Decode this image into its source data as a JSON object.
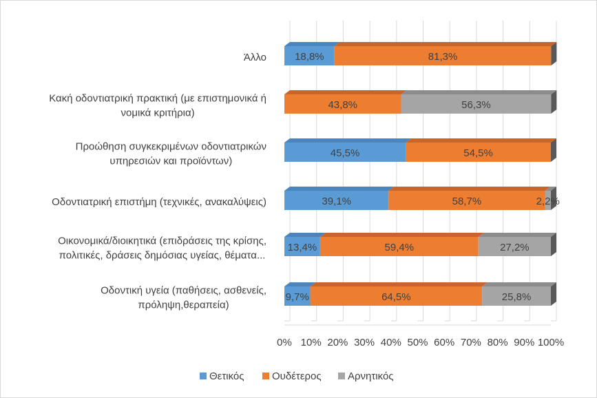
{
  "chart_data": {
    "type": "bar",
    "orientation": "horizontal",
    "stacked": true,
    "percent": true,
    "title": "",
    "xlabel": "",
    "ylabel": "",
    "xlim": [
      0,
      100
    ],
    "grid": true,
    "legend_position": "bottom",
    "ticks": [
      "0%",
      "10%",
      "20%",
      "30%",
      "40%",
      "50%",
      "60%",
      "70%",
      "80%",
      "90%",
      "100%"
    ],
    "categories": [
      {
        "lines": [
          "Οδοντική υγεία (παθήσεις, ασθενείς,",
          "πρόληψη,θεραπεία)"
        ]
      },
      {
        "lines": [
          "Οικονομικά/διοικητικά (επιδράσεις της κρίσης,",
          "πολιτικές, δράσεις δημόσιας υγείας, θέματα..."
        ]
      },
      {
        "lines": [
          "Οδοντιατρική επιστήμη (τεχνικές, ανακαλύψεις)"
        ]
      },
      {
        "lines": [
          "Προώθηση συγκεκριμένων οδοντιατρικών",
          "υπηρεσιών και προϊόντων)"
        ]
      },
      {
        "lines": [
          "Κακή οδοντιατρική πρακτική (με επιστημονικά ή",
          "νομικά κριτήρια)"
        ]
      },
      {
        "lines": [
          "Άλλο"
        ]
      }
    ],
    "series": [
      {
        "name": "Θετικός",
        "color": "#5b9bd5",
        "top_color": "#4a85bd",
        "values": [
          9.7,
          13.4,
          39.1,
          45.5,
          0,
          18.8
        ],
        "labels": [
          "9,7%",
          "13,4%",
          "39,1%",
          "45,5%",
          "",
          "18,8%"
        ]
      },
      {
        "name": "Ουδέτερος",
        "color": "#ed7d31",
        "top_color": "#c8662a",
        "values": [
          64.5,
          59.4,
          58.7,
          54.5,
          43.8,
          81.3
        ],
        "labels": [
          "64,5%",
          "59,4%",
          "58,7%",
          "54,5%",
          "43,8%",
          "81,3%"
        ]
      },
      {
        "name": "Αρνητικός",
        "color": "#a5a5a5",
        "top_color": "#8c8c8c",
        "values": [
          25.8,
          27.2,
          2.2,
          0,
          56.3,
          0
        ],
        "labels": [
          "25,8%",
          "27,2%",
          "2,2%",
          "",
          "56,3%",
          ""
        ]
      }
    ]
  }
}
